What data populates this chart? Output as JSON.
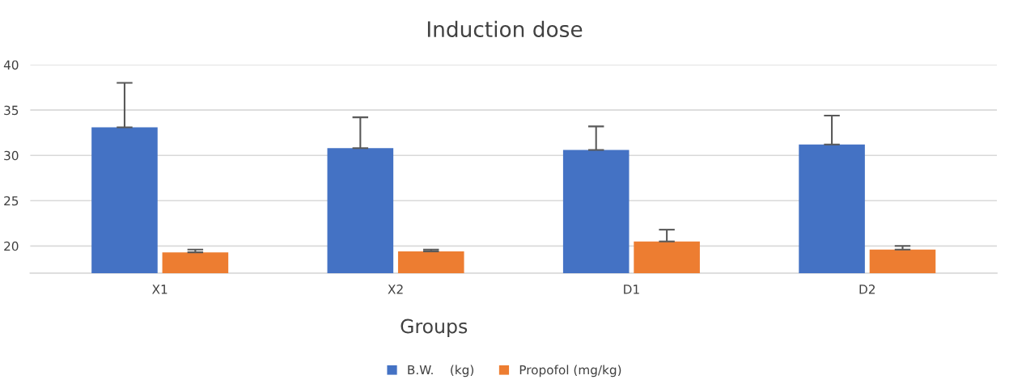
{
  "chart_data": {
    "type": "bar",
    "title": "Induction dose",
    "xlabel": "Groups",
    "categories": [
      "X1",
      "X2",
      "D1",
      "D2"
    ],
    "series": [
      {
        "name": "B.W.    (kg)",
        "color": "#4472c4",
        "values": [
          33.1,
          30.8,
          30.6,
          31.2
        ],
        "errors": [
          [
            33.1,
            38.0
          ],
          [
            30.8,
            34.2
          ],
          [
            30.6,
            33.2
          ],
          [
            31.2,
            34.4
          ]
        ]
      },
      {
        "name": "Propofol (mg/kg)",
        "color": "#ed7d31",
        "values": [
          19.3,
          19.4,
          20.5,
          19.6
        ],
        "errors": [
          [
            19.3,
            19.6
          ],
          [
            19.4,
            19.6
          ],
          [
            20.5,
            21.8
          ],
          [
            19.6,
            20.0
          ]
        ]
      }
    ],
    "ylim": [
      17,
      40
    ],
    "yticks": [
      20,
      25,
      30,
      35,
      40
    ],
    "grid": "y",
    "legend": "bottom"
  }
}
